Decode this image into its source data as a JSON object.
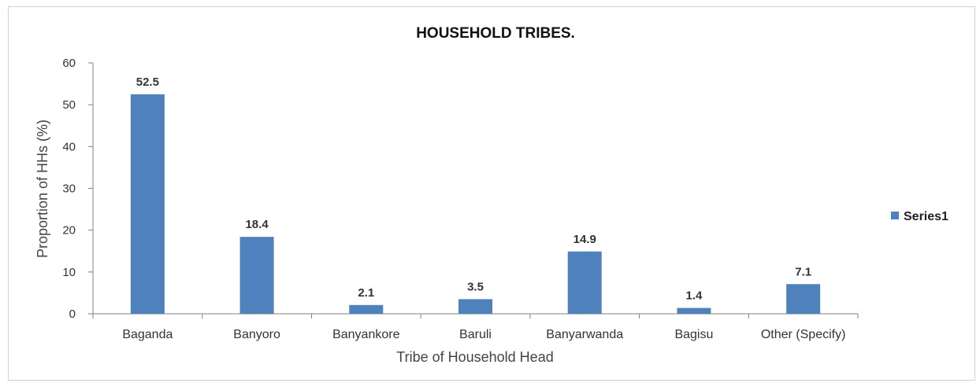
{
  "chart_data": {
    "type": "bar",
    "title": "HOUSEHOLD TRIBES.",
    "xlabel": "Tribe of Household Head",
    "ylabel": "Proportion of HHs (%)",
    "ylim": [
      0,
      60
    ],
    "yticks": [
      0,
      10,
      20,
      30,
      40,
      50,
      60
    ],
    "categories": [
      "Baganda",
      "Banyoro",
      "Banyankore",
      "Baruli",
      "Banyarwanda",
      "Bagisu",
      "Other (Specify)"
    ],
    "series": [
      {
        "name": "Series1",
        "values": [
          52.5,
          18.4,
          2.1,
          3.5,
          14.9,
          1.4,
          7.1
        ],
        "color": "#4f81bd"
      }
    ],
    "data_labels": [
      "52.5",
      "18.4",
      "2.1",
      "3.5",
      "14.9",
      "1.4",
      "7.1"
    ],
    "legend_position": "right",
    "grid": false
  }
}
